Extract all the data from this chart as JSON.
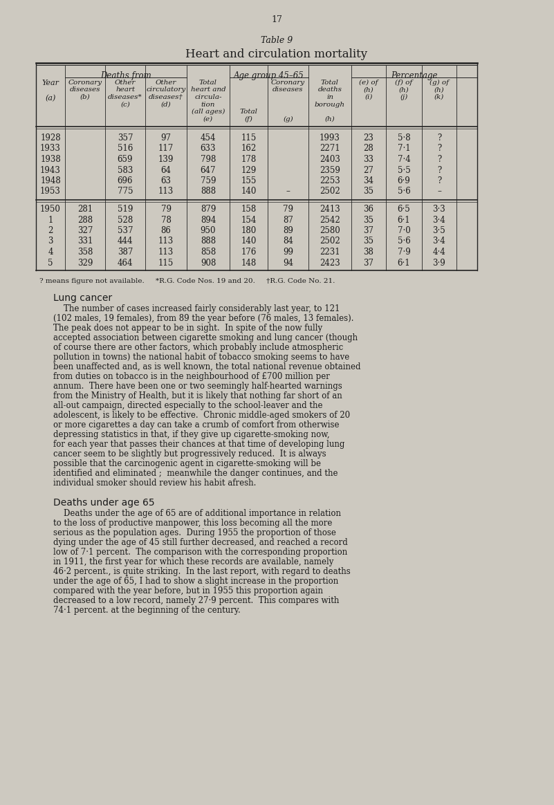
{
  "page_number": "17",
  "table_title_1": "Table 9",
  "table_title_2": "Heart and circulation mortality",
  "bg_color": "#cdc9c0",
  "text_color": "#1a1a1a",
  "early_rows": [
    [
      "1928",
      "",
      "357",
      "97",
      "454",
      "115",
      "",
      "1993",
      "23",
      "5·8",
      "?"
    ],
    [
      "1933",
      "",
      "516",
      "117",
      "633",
      "162",
      "",
      "2271",
      "28",
      "7·1",
      "?"
    ],
    [
      "1938",
      "",
      "659",
      "139",
      "798",
      "178",
      "",
      "2403",
      "33",
      "7·4",
      "?"
    ],
    [
      "1943",
      "",
      "583",
      "64",
      "647",
      "129",
      "",
      "2359",
      "27",
      "5·5",
      "?"
    ],
    [
      "1948",
      "",
      "696",
      "63",
      "759",
      "155",
      "",
      "2253",
      "34",
      "6·9",
      "?"
    ],
    [
      "1953",
      "",
      "775",
      "113",
      "888",
      "140",
      "–",
      "2502",
      "35",
      "5·6",
      "–"
    ]
  ],
  "later_rows": [
    [
      "1950",
      "281",
      "519",
      "79",
      "879",
      "158",
      "79",
      "2413",
      "36",
      "6·5",
      "3·3"
    ],
    [
      "1",
      "288",
      "528",
      "78",
      "894",
      "154",
      "87",
      "2542",
      "35",
      "6·1",
      "3·4"
    ],
    [
      "2",
      "327",
      "537",
      "86",
      "950",
      "180",
      "89",
      "2580",
      "37",
      "7·0",
      "3·5"
    ],
    [
      "3",
      "331",
      "444",
      "113",
      "888",
      "140",
      "84",
      "2502",
      "35",
      "5·6",
      "3·4"
    ],
    [
      "4",
      "358",
      "387",
      "113",
      "858",
      "176",
      "99",
      "2231",
      "38",
      "7·9",
      "4·4"
    ],
    [
      "5",
      "329",
      "464",
      "115",
      "908",
      "148",
      "94",
      "2423",
      "37",
      "6·1",
      "3·9"
    ]
  ],
  "footnote": "? means figure not available.     *R.G. Code Nos. 19 and 20.     †R.G. Code No. 21.",
  "section1_heading": "Lung cancer",
  "section1_para1": "    The number of cases increased fairly considerably last year, to 121",
  "section1_para2": "(102 males, 19 females), from 89 the year before (76 males, 13 females).",
  "section1_para3": "The peak does not appear to be in sight.  In spite of the now fully",
  "section1_para4": "accepted association between cigarette smoking and lung cancer (though",
  "section1_para5": "of course there are other factors, which probably include atmospheric",
  "section1_para6": "pollution in towns) the national habit of tobacco smoking seems to have",
  "section1_para7": "been unaffected and, as is well known, the total national revenue obtained",
  "section1_para8": "from duties on tobacco is in the neighbourhood of £700 million per",
  "section1_para9": "annum.  There have been one or two seemingly half-hearted warnings",
  "section1_para10": "from the Ministry of Health, but it is likely that nothing far short of an",
  "section1_para11": "all-out campaign, directed especially to the school-leaver and the",
  "section1_para12": "adolescent, is likely to be effective.  Chronic middle-aged smokers of 20",
  "section1_para13": "or more cigarettes a day can take a crumb of comfort from otherwise",
  "section1_para14": "depressing statistics in that, if they give up cigarette-smoking now,",
  "section1_para15": "for each year that passes their chances at that time of developing lung",
  "section1_para16": "cancer seem to be slightly but progressively reduced.  It is always",
  "section1_para17": "possible that the carcinogenic agent in cigarette-smoking will be",
  "section1_para18": "identified and eliminated ;  meanwhile the danger continues, and the",
  "section1_para19": "individual smoker should review his habit afresh.",
  "section1_lines": [
    "    The number of cases increased fairly considerably last year, to 121",
    "(102 males, 19 females), from 89 the year before (76 males, 13 females).",
    "The peak does not appear to be in sight.  In spite of the now fully",
    "accepted association between cigarette smoking and lung cancer (though",
    "of course there are other factors, which probably include atmospheric",
    "pollution in towns) the national habit of tobacco smoking seems to have",
    "been unaffected and, as is well known, the total national revenue obtained",
    "from duties on tobacco is in the neighbourhood of £700 million per",
    "annum.  There have been one or two seemingly half-hearted warnings",
    "from the Ministry of Health, but it is likely that nothing far short of an",
    "all-out campaign, directed especially to the school-leaver and the",
    "adolescent, is likely to be effective.  Chronic middle-aged smokers of 20",
    "or more cigarettes a day can take a crumb of comfort from otherwise",
    "depressing statistics in that, if they give up cigarette-smoking now,",
    "for each year that passes their chances at that time of developing lung",
    "cancer seem to be slightly but progressively reduced.  It is always",
    "possible that the carcinogenic agent in cigarette-smoking will be",
    "identified and eliminated ;  meanwhile the danger continues, and the",
    "individual smoker should review his habit afresh."
  ],
  "section2_heading": "Deaths under age 65",
  "section2_lines": [
    "    Deaths under the age of 65 are of additional importance in relation",
    "to the loss of productive manpower, this loss becoming all the more",
    "serious as the population ages.  During 1955 the proportion of those",
    "dying under the age of 45 still further decreased, and reached a record",
    "low of 7·1 percent.  The comparison with the corresponding proportion",
    "in 1911, the first year for which these records are available, namely",
    "46·2 percent., is quite striking.  In the last report, with regard to deaths",
    "under the age of 65, I had to show a slight increase in the proportion",
    "compared with the year before, but in 1955 this proportion again",
    "decreased to a low record, namely 27·9 percent.  This compares with",
    "74·1 percent. at the beginning of the century."
  ]
}
